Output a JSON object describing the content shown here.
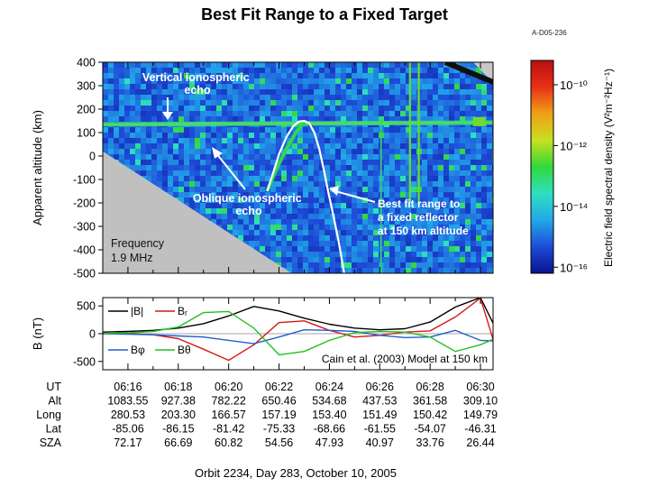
{
  "page": {
    "title": "Best Fit Range to a Fixed Target",
    "figure_id": "A-D05-236",
    "footer": "Orbit 2234, Day 283, October 10, 2005"
  },
  "chart_data": [
    {
      "type": "heatmap",
      "ylabel": "Apparent altitude (km)",
      "ylim": [
        -500,
        400
      ],
      "y_ticks": [
        400,
        300,
        200,
        100,
        0,
        -100,
        -200,
        -300,
        -400,
        -500
      ],
      "x_range_ut": [
        "06:15:00",
        "06:30:30"
      ],
      "colorbar": {
        "label": "Electric field spectral density (V²m⁻²Hz⁻¹)",
        "tick_labels": [
          "10⁻¹⁰",
          "10⁻¹²",
          "10⁻¹⁴",
          "10⁻¹⁶"
        ],
        "tick_exponents": [
          -10,
          -12,
          -14,
          -16
        ],
        "range_exponent": [
          -16.2,
          -9.2
        ],
        "colors": [
          "#0a1290",
          "#1e4cd8",
          "#22a8e8",
          "#2ee0c0",
          "#32d838",
          "#c8e020",
          "#f0a018",
          "#e83018",
          "#b81010"
        ]
      },
      "annotations": [
        {
          "text_lines": [
            "Vertical ionospheric",
            "echo"
          ]
        },
        {
          "text_lines": [
            "Oblique ionospheric",
            "echo"
          ]
        },
        {
          "text_lines": [
            "Best fit range to",
            "a fixed reflector",
            "at 150 km altitude"
          ]
        },
        {
          "text_lines": [
            "Frequency",
            "1.9 MHz"
          ]
        }
      ],
      "best_fit_curve": {
        "x_min": [
          6.53,
          6.8,
          7.01,
          7.29,
          7.57,
          7.78,
          8.0,
          8.2,
          8.4,
          8.6,
          8.78,
          8.95,
          9.15,
          9.36,
          9.59
        ],
        "y_km": [
          -150,
          -60,
          10,
          80,
          128,
          147,
          150,
          140,
          100,
          30,
          -60,
          -150,
          -250,
          -360,
          -500
        ]
      },
      "oblique_echo_trace": {
        "x_min": [
          6.53,
          6.92,
          7.29,
          7.67,
          8.04
        ],
        "y_km": [
          -150,
          -50,
          30,
          100,
          150
        ]
      },
      "vertical_echo_band_km": 135,
      "blank_region_boundary": {
        "x_min": [
          0,
          7.5
        ],
        "y_km": [
          20,
          -500
        ]
      }
    },
    {
      "type": "line",
      "ylabel": "B (nT)",
      "ylim": [
        -650,
        650
      ],
      "y_ticks": [
        500,
        0,
        -500
      ],
      "note": "Cain et al. (2003) Model at 150 km",
      "x_min": [
        0,
        1,
        2,
        3,
        4,
        5,
        6,
        7,
        8,
        9,
        10,
        11,
        12,
        13,
        14,
        15,
        15.5
      ],
      "series": [
        {
          "name": "|B|",
          "color": "#000000",
          "values": [
            30,
            40,
            60,
            100,
            180,
            320,
            490,
            410,
            280,
            170,
            100,
            70,
            90,
            210,
            480,
            650,
            190
          ]
        },
        {
          "name": "Bᵣ",
          "color": "#d81818",
          "values": [
            0,
            5,
            -20,
            -90,
            -280,
            -480,
            -200,
            200,
            230,
            60,
            -60,
            -30,
            30,
            50,
            300,
            640,
            -100
          ]
        },
        {
          "name": "Bφ",
          "color": "#1f5fd0",
          "values": [
            0,
            -10,
            -20,
            -40,
            -60,
            -120,
            -180,
            -60,
            70,
            60,
            40,
            -30,
            -70,
            -60,
            60,
            -120,
            -130
          ]
        },
        {
          "name": "Bθ",
          "color": "#22c022",
          "values": [
            0,
            15,
            40,
            120,
            380,
            400,
            100,
            -380,
            -320,
            -120,
            20,
            40,
            30,
            -60,
            -320,
            -200,
            -100
          ]
        }
      ]
    }
  ],
  "table": {
    "row_labels": [
      "UT",
      "Alt",
      "Long",
      "Lat",
      "SZA"
    ],
    "columns": [
      {
        "UT": "06:16",
        "Alt": "1083.55",
        "Long": "280.53",
        "Lat": "-85.06",
        "SZA": "72.17"
      },
      {
        "UT": "06:18",
        "Alt": "927.38",
        "Long": "203.30",
        "Lat": "-86.15",
        "SZA": "66.69"
      },
      {
        "UT": "06:20",
        "Alt": "782.22",
        "Long": "166.57",
        "Lat": "-81.42",
        "SZA": "60.82"
      },
      {
        "UT": "06:22",
        "Alt": "650.46",
        "Long": "157.19",
        "Lat": "-75.33",
        "SZA": "54.56"
      },
      {
        "UT": "06:24",
        "Alt": "534.68",
        "Long": "153.40",
        "Lat": "-68.66",
        "SZA": "47.93"
      },
      {
        "UT": "06:26",
        "Alt": "437.53",
        "Long": "151.49",
        "Lat": "-61.55",
        "SZA": "40.97"
      },
      {
        "UT": "06:28",
        "Alt": "361.58",
        "Long": "150.42",
        "Lat": "-54.07",
        "SZA": "33.76"
      },
      {
        "UT": "06:30",
        "Alt": "309.10",
        "Long": "149.79",
        "Lat": "-46.31",
        "SZA": "26.44"
      }
    ]
  }
}
